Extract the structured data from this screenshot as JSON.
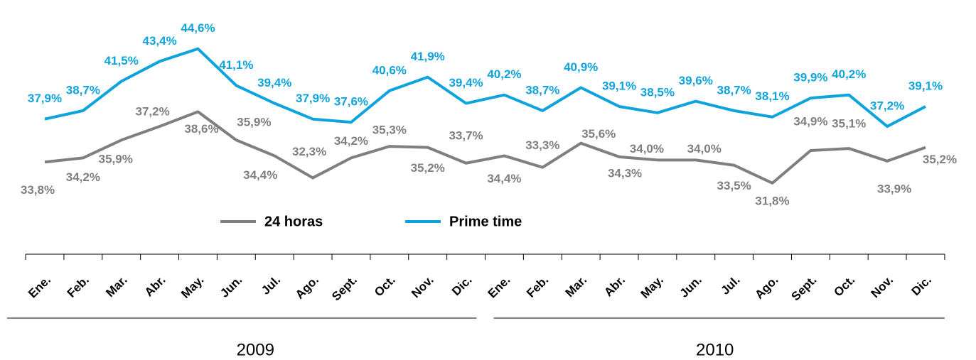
{
  "chart_data": {
    "type": "line",
    "categories": [
      "Ene.",
      "Feb.",
      "Mar.",
      "Abr.",
      "May.",
      "Jun.",
      "Jul.",
      "Ago.",
      "Sept.",
      "Oct.",
      "Nov.",
      "Dic.",
      "Ene.",
      "Feb.",
      "Mar.",
      "Abr.",
      "May.",
      "Jun.",
      "Jul.",
      "Ago.",
      "Sept.",
      "Oct.",
      "Nov.",
      "Dic."
    ],
    "category_groups": [
      "2009",
      "2010"
    ],
    "ylim": [
      28,
      46
    ],
    "legend": "center",
    "series": [
      {
        "name": "24 horas",
        "color": "#7f7f7f",
        "values": [
          33.8,
          34.2,
          35.9,
          37.2,
          38.6,
          35.9,
          34.4,
          32.3,
          34.2,
          35.3,
          35.2,
          33.7,
          34.4,
          33.3,
          35.6,
          34.3,
          34.0,
          34.0,
          33.5,
          31.8,
          34.9,
          35.1,
          33.9,
          35.2
        ],
        "value_labels": [
          "33,8%",
          "34,2%",
          "35,9%",
          "37,2%",
          "38,6%",
          "35,9%",
          "34,4%",
          "32,3%",
          "34,2%",
          "35,3%",
          "35,2%",
          "33,7%",
          "34,4%",
          "33,3%",
          "35,6%",
          "34,3%",
          "34,0%",
          "34,0%",
          "33,5%",
          "31,8%",
          "34,9%",
          "35,1%",
          "33,9%",
          "35,2%"
        ]
      },
      {
        "name": "Prime time",
        "color": "#0fa3dd",
        "values": [
          37.9,
          38.7,
          41.5,
          43.4,
          44.6,
          41.1,
          39.4,
          37.9,
          37.6,
          40.6,
          41.9,
          39.4,
          40.2,
          38.7,
          40.9,
          39.1,
          38.5,
          39.6,
          38.7,
          38.1,
          39.9,
          40.2,
          37.2,
          39.1
        ],
        "value_labels": [
          "37,9%",
          "38,7%",
          "41,5%",
          "43,4%",
          "44,6%",
          "41,1%",
          "39,4%",
          "37,9%",
          "37,6%",
          "40,6%",
          "41,9%",
          "39,4%",
          "40,2%",
          "38,7%",
          "40,9%",
          "39,1%",
          "38,5%",
          "39,6%",
          "38,7%",
          "38,1%",
          "39,9%",
          "40,2%",
          "37,2%",
          "39,1%"
        ]
      }
    ]
  }
}
